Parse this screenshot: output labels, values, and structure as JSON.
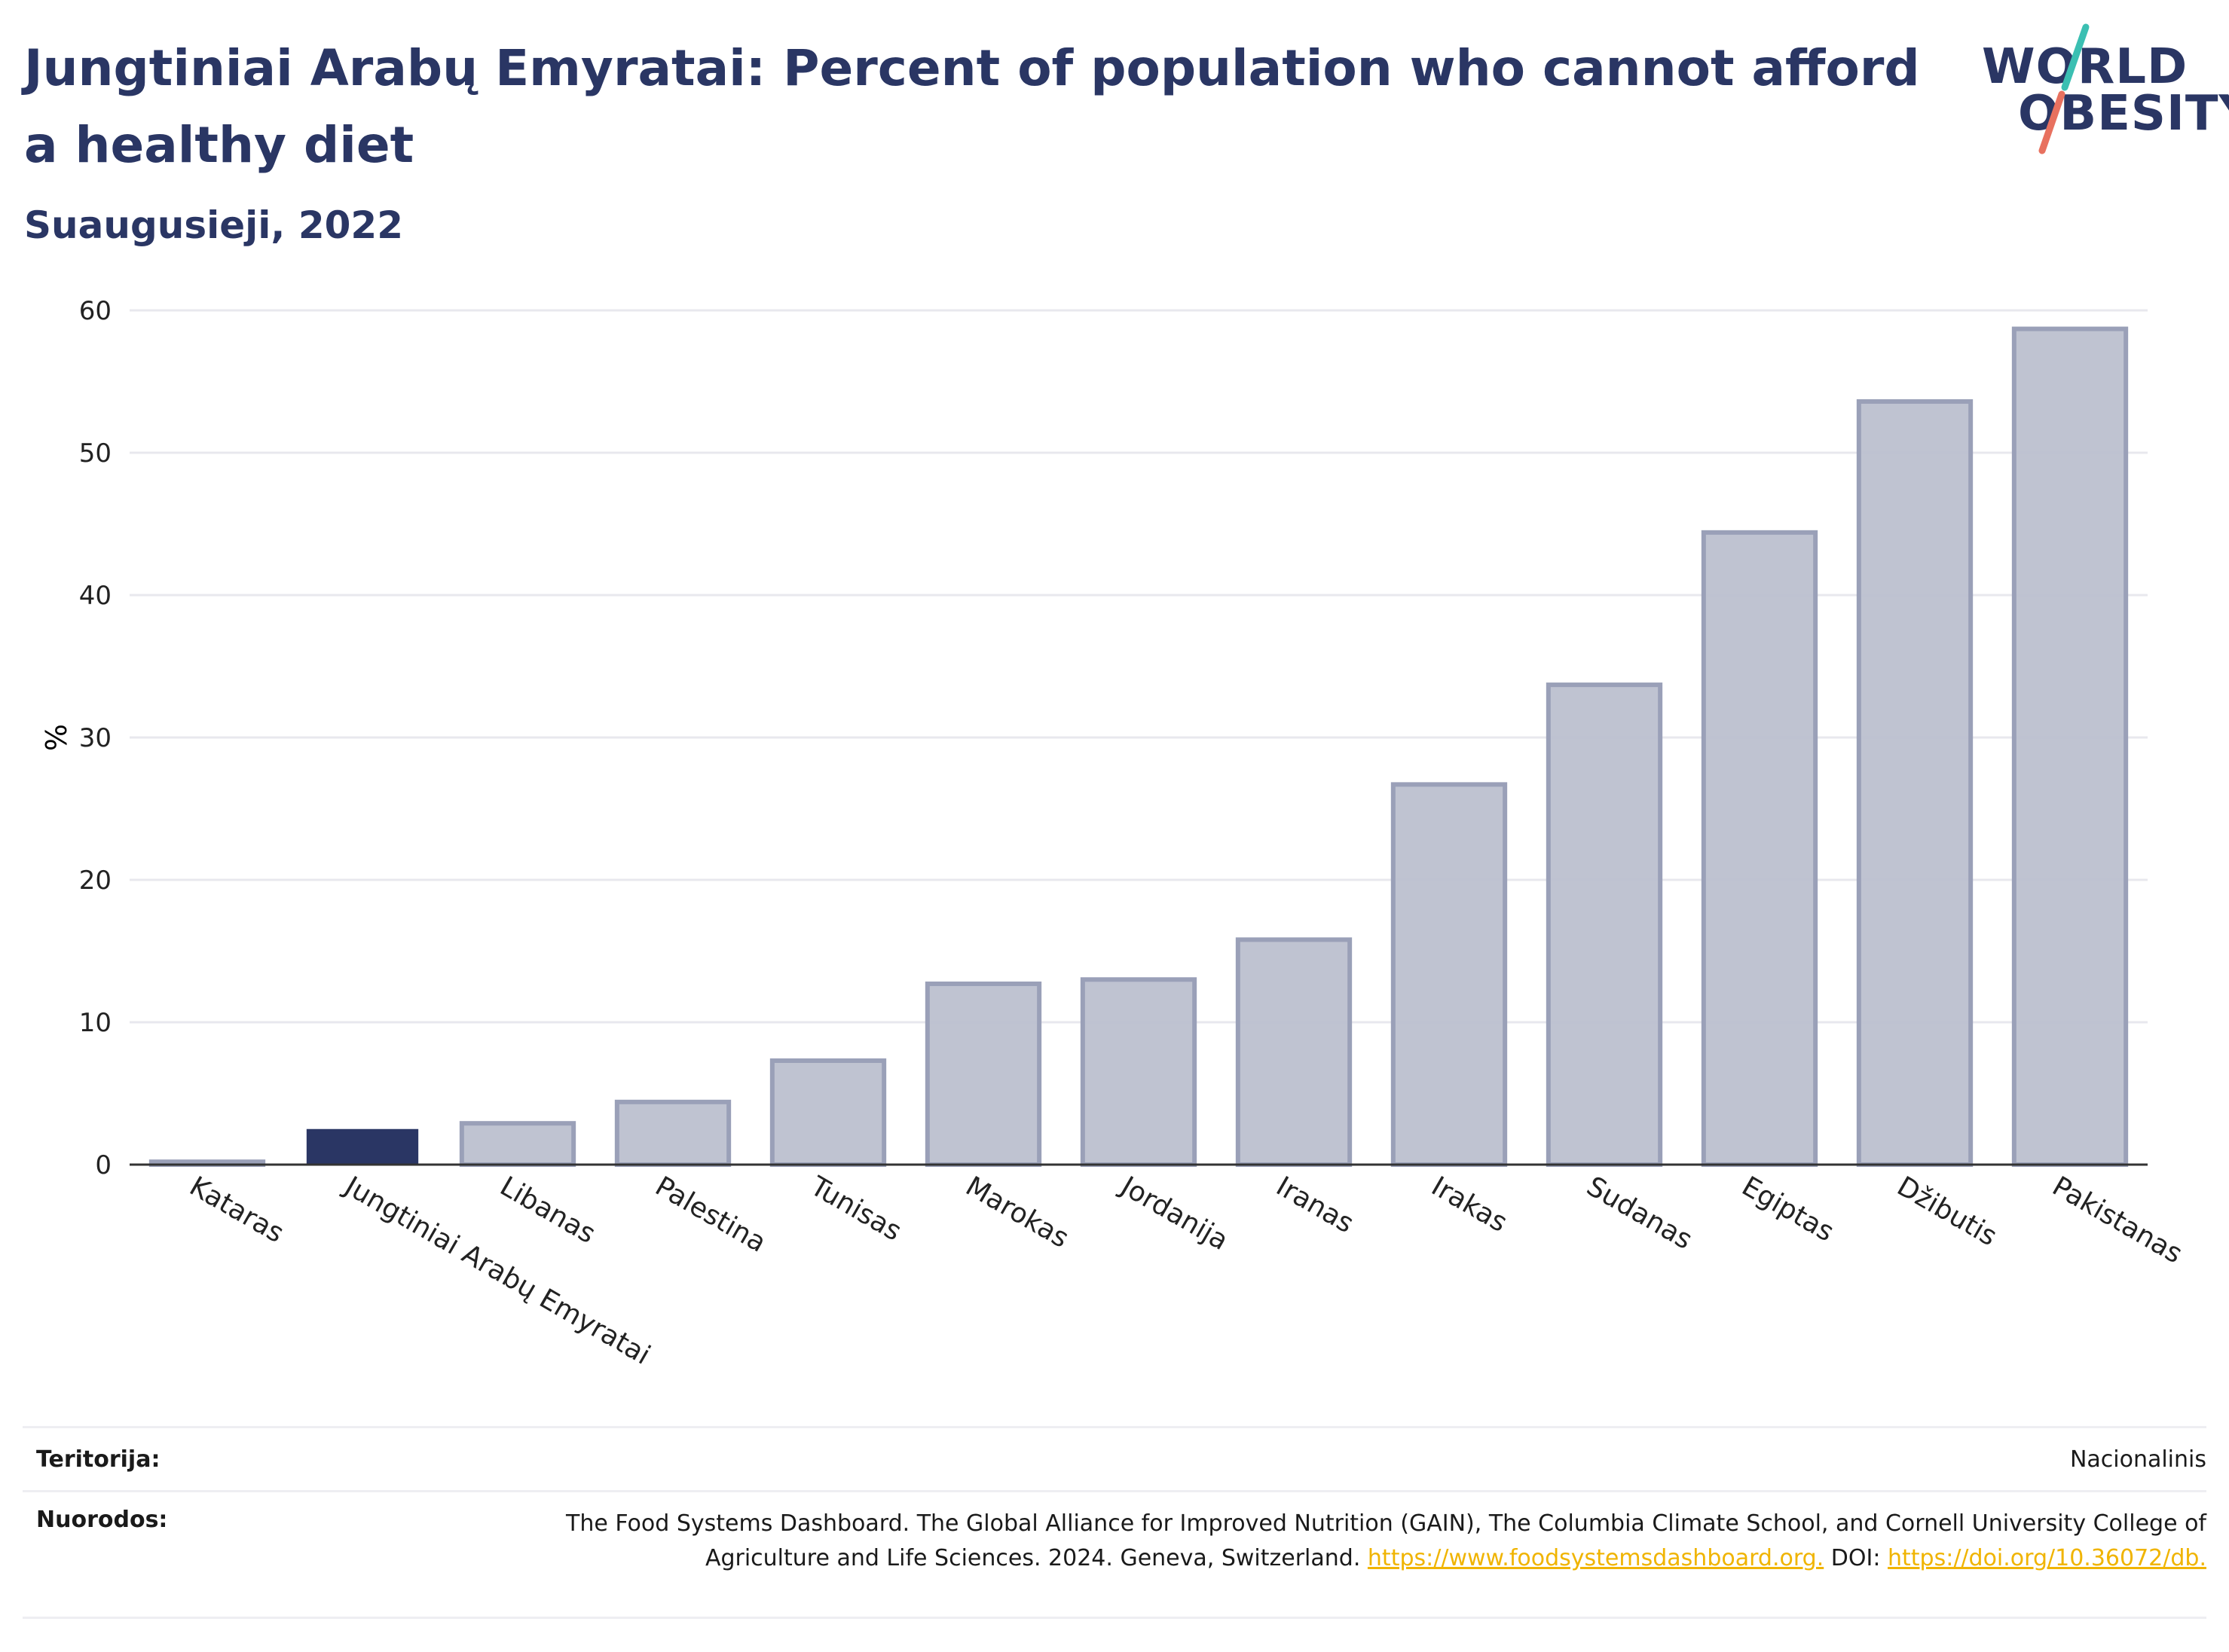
{
  "header": {
    "title": "Jungtiniai Arabų Emyratai: Percent of population who cannot afford a healthy diet",
    "subtitle": "Suaugusieji, 2022"
  },
  "logo": {
    "line1": "WORLD",
    "line2": "OBESITY",
    "accent_colors": [
      "#3bbfb2",
      "#e8715f"
    ]
  },
  "colors": {
    "highlight": "#2a3664",
    "bar_fill": "#bcc0cf",
    "bar_stroke": "#9aa0b8",
    "grid": "#e8e8ee",
    "axis": "#333333",
    "link": "#f0b400"
  },
  "chart_data": {
    "type": "bar",
    "categories": [
      "Kataras",
      "Jungtiniai Arabų Emyratai",
      "Libanas",
      "Palestina",
      "Tunisas",
      "Marokas",
      "Jordanija",
      "Iranas",
      "Irakas",
      "Sudanas",
      "Egiptas",
      "Džibutis",
      "Pakistanas"
    ],
    "values": [
      0.2,
      2.5,
      2.9,
      4.4,
      7.3,
      12.7,
      13.0,
      15.8,
      26.7,
      33.7,
      44.4,
      53.6,
      58.7
    ],
    "highlight_index": 1,
    "ylabel": "%",
    "ylim": [
      0,
      60
    ],
    "yticks": [
      0,
      10,
      20,
      30,
      40,
      50,
      60
    ],
    "grid": true
  },
  "footer": {
    "territory_label": "Teritorija:",
    "territory_value": "Nacionalinis",
    "refs_label": "Nuorodos:",
    "refs_text": "The Food Systems Dashboard. The Global Alliance for Improved Nutrition (GAIN), The Columbia Climate School, and Cornell University College of Agriculture and Life Sciences. 2024. Geneva, Switzerland.",
    "refs_link1": "https://www.foodsystemsdashboard.org.",
    "refs_doi": "DOI:",
    "refs_link2": "https://doi.org/10.36072/db."
  }
}
